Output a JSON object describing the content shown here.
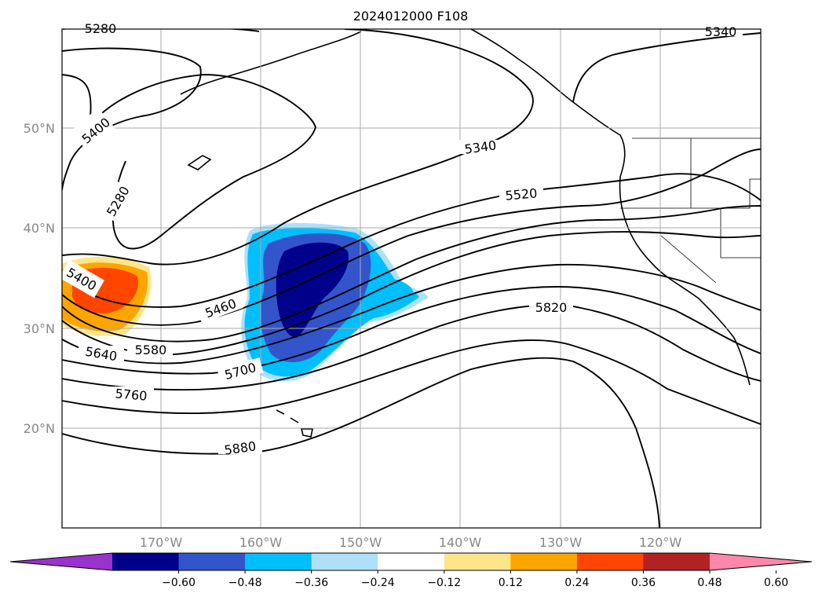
{
  "title": "2024012000 F108",
  "map": {
    "lat_ticks": [
      "50°N",
      "40°N",
      "30°N",
      "20°N"
    ],
    "lon_ticks": [
      "170°W",
      "160°W",
      "150°W",
      "140°W",
      "130°W",
      "120°W"
    ],
    "contour_labels": [
      "5280",
      "5340",
      "5400",
      "5280",
      "5340",
      "5520",
      "5400",
      "5460",
      "5640",
      "5580",
      "5700",
      "5760",
      "5820",
      "5880"
    ]
  },
  "colorbar": {
    "ticks": [
      "−0.60",
      "−0.48",
      "−0.36",
      "−0.24",
      "−0.12",
      "0.12",
      "0.24",
      "0.36",
      "0.48",
      "0.60"
    ],
    "colors": [
      "#9933cc",
      "#00008b",
      "#3355cc",
      "#00bfff",
      "#aee1f9",
      "#ffffff",
      "#fde68a",
      "#ffa500",
      "#ff4500",
      "#b22222",
      "#ff88aa"
    ]
  },
  "colors": {
    "contour": "#000000",
    "grid": "#aaaaaa",
    "tick_label": "#888888",
    "strong_negative": "#00008b",
    "moderate_negative": "#3355cc",
    "weak_negative": "#00bfff",
    "faint_negative": "#aee1f9",
    "strong_positive": "#ff4500",
    "moderate_positive": "#ffa500",
    "weak_positive": "#fde68a"
  }
}
